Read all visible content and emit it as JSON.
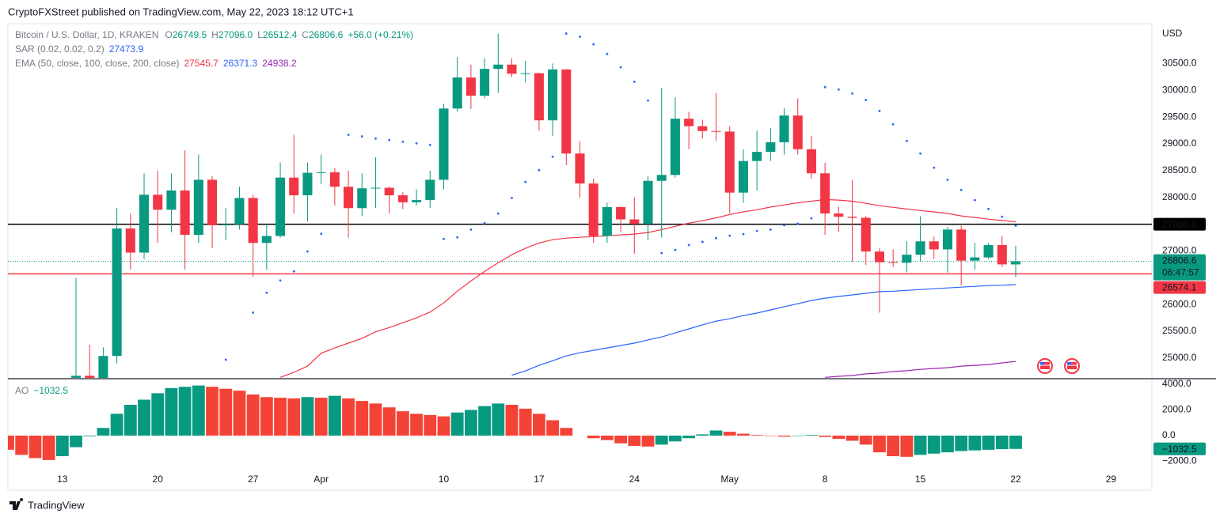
{
  "header": "CryptoFXStreet published on TradingView.com, May 22, 2023 18:12 UTC+1",
  "footer": "TradingView",
  "chart_data": [
    {
      "type": "candlestick",
      "symbol": "Bitcoin / U.S. Dollar, 1D, KRAKEN",
      "ohlc_labels": [
        {
          "key": "O",
          "label": "26749.5"
        },
        {
          "key": "H",
          "label": "27096.0"
        },
        {
          "key": "L",
          "label": "26512.4"
        },
        {
          "key": "C",
          "label": "26806.6"
        }
      ],
      "change": "+56.0 (+0.21%)",
      "currency": "USD",
      "up_color": "#089981",
      "down_color": "#f23645",
      "x": [
        "2023-03-14",
        "2023-03-15",
        "2023-03-16",
        "2023-03-17",
        "2023-03-18",
        "2023-03-19",
        "2023-03-20",
        "2023-03-21",
        "2023-03-22",
        "2023-03-23",
        "2023-03-24",
        "2023-03-25",
        "2023-03-26",
        "2023-03-27",
        "2023-03-28",
        "2023-03-29",
        "2023-03-30",
        "2023-03-31",
        "2023-04-01",
        "2023-04-02",
        "2023-04-03",
        "2023-04-04",
        "2023-04-05",
        "2023-04-06",
        "2023-04-07",
        "2023-04-08",
        "2023-04-09",
        "2023-04-10",
        "2023-04-11",
        "2023-04-12",
        "2023-04-13",
        "2023-04-14",
        "2023-04-15",
        "2023-04-16",
        "2023-04-17",
        "2023-04-18",
        "2023-04-19",
        "2023-04-20",
        "2023-04-21",
        "2023-04-22",
        "2023-04-23",
        "2023-04-24",
        "2023-04-25",
        "2023-04-26",
        "2023-04-27",
        "2023-04-28",
        "2023-04-29",
        "2023-04-30",
        "2023-05-01",
        "2023-05-02",
        "2023-05-03",
        "2023-05-04",
        "2023-05-05",
        "2023-05-06",
        "2023-05-07",
        "2023-05-08",
        "2023-05-09",
        "2023-05-10",
        "2023-05-11",
        "2023-05-12",
        "2023-05-13",
        "2023-05-14",
        "2023-05-15",
        "2023-05-16",
        "2023-05-17",
        "2023-05-18",
        "2023-05-19",
        "2023-05-20",
        "2023-05-21",
        "2023-05-22"
      ],
      "open": [
        24120,
        24670,
        24290,
        25040,
        27420,
        26970,
        28050,
        27770,
        28130,
        27300,
        28330,
        27480,
        27500,
        27990,
        27150,
        27280,
        28370,
        28040,
        28460,
        28470,
        28200,
        27800,
        28170,
        28180,
        28040,
        27910,
        27950,
        28330,
        29660,
        30240,
        29900,
        30400,
        30480,
        30310,
        30320,
        29440,
        30390,
        28820,
        28260,
        27280,
        27820,
        27590,
        27510,
        28310,
        28420,
        29470,
        29330,
        29240,
        29230,
        28090,
        28680,
        28850,
        29030,
        29530,
        28900,
        28450,
        27700,
        27640,
        27620,
        26990,
        26790,
        26780,
        26930,
        27180,
        27030,
        27400,
        26820,
        26880,
        27110,
        26749.5
      ],
      "high": [
        26500,
        25250,
        25200,
        27800,
        27700,
        28450,
        28500,
        28450,
        28880,
        28800,
        28400,
        27800,
        28200,
        28050,
        27500,
        28650,
        29170,
        28650,
        28800,
        28550,
        28500,
        28450,
        28750,
        28200,
        28100,
        28150,
        28500,
        29750,
        30620,
        30480,
        30600,
        31060,
        30600,
        30550,
        30330,
        30500,
        30400,
        29050,
        28350,
        27900,
        27830,
        28000,
        28400,
        30050,
        29870,
        29600,
        29450,
        29950,
        29330,
        28900,
        29250,
        29300,
        29670,
        29850,
        29150,
        28650,
        27830,
        28330,
        27650,
        27050,
        27030,
        27180,
        27650,
        27270,
        27450,
        27470,
        27150,
        27150,
        27280,
        27096.0
      ],
      "low": [
        24100,
        23900,
        24200,
        24900,
        26650,
        26850,
        27150,
        27350,
        26650,
        27150,
        27050,
        27200,
        27400,
        26520,
        26650,
        27250,
        27700,
        27550,
        28250,
        27850,
        27250,
        27650,
        27800,
        27700,
        27780,
        27850,
        27800,
        28150,
        29600,
        29650,
        29850,
        29950,
        30250,
        30150,
        29250,
        29150,
        28600,
        28000,
        27150,
        27150,
        27350,
        26950,
        27200,
        27250,
        28370,
        28900,
        29100,
        29050,
        27700,
        27900,
        28130,
        28680,
        28800,
        28800,
        28350,
        27300,
        27350,
        26800,
        26740,
        25850,
        26700,
        26600,
        26800,
        26850,
        26600,
        26360,
        26650,
        26850,
        26700,
        26512.4
      ],
      "close": [
        24670,
        24290,
        25040,
        27420,
        26970,
        28050,
        27770,
        28130,
        27300,
        28330,
        27480,
        27500,
        27990,
        27150,
        27280,
        28370,
        28040,
        28460,
        28470,
        28200,
        27800,
        28170,
        28180,
        28040,
        27910,
        27950,
        28330,
        29660,
        30240,
        29900,
        30400,
        30480,
        30310,
        30320,
        29440,
        30390,
        28820,
        28260,
        27280,
        27820,
        27590,
        27510,
        28310,
        28420,
        29470,
        29330,
        29240,
        29230,
        28090,
        28680,
        28850,
        29030,
        29530,
        28900,
        28450,
        27700,
        27640,
        27620,
        26990,
        26790,
        26780,
        26930,
        27180,
        27030,
        27400,
        26820,
        26880,
        27110,
        26750,
        26806.6
      ],
      "indicators": [
        {
          "name": "SAR (0.02, 0.02, 0.2)",
          "series": [
            {
              "style": "dots",
              "color": "#2962ff",
              "values": [
                null,
                null,
                null,
                null,
                null,
                null,
                null,
                null,
                null,
                null,
                null,
                24970,
                null,
                25850,
                26220,
                26450,
                26620,
                26990,
                27320,
                null,
                29170,
                29140,
                29100,
                29070,
                29040,
                29010,
                28980,
                27225,
                27255,
                27400,
                27520,
                27700,
                27990,
                28290,
                28510,
                28760,
                31060,
                31000,
                30860,
                30680,
                30430,
                30160,
                29810,
                26960,
                27020,
                27110,
                27170,
                27240,
                27285,
                27315,
                27375,
                27400,
                27480,
                27510,
                27610,
                30060,
                30015,
                29940,
                29820,
                29615,
                29365,
                29055,
                28820,
                28555,
                28330,
                28140,
                27950,
                27785,
                27640,
                27473.9
              ]
            }
          ]
        },
        {
          "name": "EMA (50, close, 100, close, 200, close)",
          "series": [
            {
              "style": "line",
              "color": "#f23645",
              "values": [
                null,
                null,
                null,
                null,
                null,
                null,
                null,
                null,
                null,
                null,
                null,
                null,
                null,
                null,
                null,
                24640,
                24733,
                24850,
                25090,
                25190,
                25280,
                25370,
                25490,
                25570,
                25660,
                25750,
                25860,
                26030,
                26250,
                26440,
                26620,
                26780,
                26930,
                27050,
                27150,
                27210,
                27240,
                27255,
                27270,
                27285,
                27300,
                27315,
                27345,
                27400,
                27460,
                27520,
                27565,
                27620,
                27680,
                27730,
                27770,
                27820,
                27860,
                27900,
                27930,
                27960,
                27950,
                27930,
                27890,
                27845,
                27815,
                27785,
                27755,
                27730,
                27700,
                27655,
                27625,
                27595,
                27570,
                27545.7
              ]
            },
            {
              "style": "line",
              "color": "#2962ff",
              "values": [
                null,
                null,
                null,
                null,
                null,
                null,
                null,
                null,
                null,
                null,
                null,
                null,
                null,
                null,
                null,
                null,
                null,
                null,
                null,
                null,
                null,
                null,
                null,
                null,
                null,
                null,
                null,
                null,
                null,
                null,
                null,
                null,
                24680,
                24760,
                24865,
                24950,
                25040,
                25100,
                25145,
                25190,
                25235,
                25280,
                25340,
                25395,
                25470,
                25545,
                25620,
                25690,
                25735,
                25795,
                25840,
                25900,
                25960,
                26015,
                26075,
                26120,
                26150,
                26180,
                26210,
                26240,
                26250,
                26265,
                26280,
                26295,
                26310,
                26325,
                26340,
                26355,
                26360,
                26371.3
              ]
            },
            {
              "style": "line",
              "color": "#9c27b0",
              "values": [
                null,
                null,
                null,
                null,
                null,
                null,
                null,
                null,
                null,
                null,
                null,
                null,
                null,
                null,
                null,
                null,
                null,
                null,
                null,
                null,
                null,
                null,
                null,
                null,
                null,
                null,
                null,
                null,
                null,
                null,
                null,
                null,
                null,
                null,
                null,
                null,
                null,
                null,
                null,
                null,
                null,
                null,
                null,
                null,
                null,
                null,
                null,
                null,
                null,
                null,
                null,
                null,
                null,
                null,
                null,
                24640,
                24660,
                24675,
                24705,
                24720,
                24750,
                24765,
                24790,
                24805,
                24820,
                24850,
                24865,
                24880,
                24910,
                24938.2
              ]
            }
          ]
        }
      ],
      "hlines": [
        {
          "value": 27500,
          "label": "27500.0",
          "color": "#000000"
        },
        {
          "value": 26574.1,
          "label": "26574.1",
          "color": "#f23645"
        }
      ],
      "last_price": {
        "value": 26806.6,
        "label": "26806.6",
        "countdown": "06:47:57",
        "color": "#089981"
      },
      "xlim": [
        "2023-03-09",
        "2023-06-01"
      ],
      "ylim": [
        24630,
        31170
      ],
      "yticks": [
        {
          "value": 25000,
          "label": "25000.0"
        },
        {
          "value": 25500,
          "label": "25500.0"
        },
        {
          "value": 26000,
          "label": "26000.0"
        },
        {
          "value": 26500,
          "label": "26500.0"
        },
        {
          "value": 27000,
          "label": "27000.0"
        },
        {
          "value": 27500,
          "label": "27500.0"
        },
        {
          "value": 28000,
          "label": "28000.0"
        },
        {
          "value": 28500,
          "label": "28500.0"
        },
        {
          "value": 29000,
          "label": "29000.0"
        },
        {
          "value": 29500,
          "label": "29500.0"
        },
        {
          "value": 30000,
          "label": "30000.0"
        },
        {
          "value": 30500,
          "label": "30500.0"
        }
      ]
    },
    {
      "type": "bar",
      "name": "AO",
      "up_color": "#089981",
      "down_color": "#f44336",
      "x": [
        "2023-03-09",
        "2023-03-10",
        "2023-03-11",
        "2023-03-12",
        "2023-03-13",
        "2023-03-14",
        "2023-03-15",
        "2023-03-16",
        "2023-03-17",
        "2023-03-18",
        "2023-03-19",
        "2023-03-20",
        "2023-03-21",
        "2023-03-22",
        "2023-03-23",
        "2023-03-24",
        "2023-03-25",
        "2023-03-26",
        "2023-03-27",
        "2023-03-28",
        "2023-03-29",
        "2023-03-30",
        "2023-03-31",
        "2023-04-01",
        "2023-04-02",
        "2023-04-03",
        "2023-04-04",
        "2023-04-05",
        "2023-04-06",
        "2023-04-07",
        "2023-04-08",
        "2023-04-09",
        "2023-04-10",
        "2023-04-11",
        "2023-04-12",
        "2023-04-13",
        "2023-04-14",
        "2023-04-15",
        "2023-04-16",
        "2023-04-17",
        "2023-04-18",
        "2023-04-19",
        "2023-04-20",
        "2023-04-21",
        "2023-04-22",
        "2023-04-23",
        "2023-04-24",
        "2023-04-25",
        "2023-04-26",
        "2023-04-27",
        "2023-04-28",
        "2023-04-29",
        "2023-04-30",
        "2023-05-01",
        "2023-05-02",
        "2023-05-03",
        "2023-05-04",
        "2023-05-05",
        "2023-05-06",
        "2023-05-07",
        "2023-05-08",
        "2023-05-09",
        "2023-05-10",
        "2023-05-11",
        "2023-05-12",
        "2023-05-13",
        "2023-05-14",
        "2023-05-15",
        "2023-05-16",
        "2023-05-17",
        "2023-05-18",
        "2023-05-19",
        "2023-05-20",
        "2023-05-21",
        "2023-05-22"
      ],
      "values": [
        -1100,
        -1500,
        -1750,
        -1900,
        -1600,
        -900,
        -50,
        600,
        1700,
        2400,
        2800,
        3300,
        3700,
        3800,
        3900,
        3800,
        3650,
        3500,
        3200,
        3000,
        2950,
        2900,
        3000,
        2950,
        3100,
        2900,
        2700,
        2500,
        2200,
        1900,
        1700,
        1600,
        1500,
        1800,
        2000,
        2300,
        2500,
        2400,
        2100,
        1700,
        1200,
        600,
        0,
        -200,
        -350,
        -600,
        -800,
        -850,
        -700,
        -450,
        -200,
        100,
        400,
        300,
        150,
        50,
        -30,
        -80,
        -30,
        50,
        -100,
        -250,
        -400,
        -700,
        -1300,
        -1600,
        -1650,
        -1500,
        -1400,
        -1300,
        -1200,
        -1150,
        -1100,
        -1050,
        -1032.5
      ],
      "last_label": "−1032.5",
      "xlim": [
        "2023-03-09",
        "2023-06-01"
      ],
      "ylim": [
        -3015,
        4370
      ],
      "yticks": [
        {
          "value": 4000,
          "label": "4000.0"
        },
        {
          "value": 2000,
          "label": "2000.0"
        },
        {
          "value": 0,
          "label": "0.0"
        },
        {
          "value": -2000,
          "label": "−2000.0"
        }
      ],
      "xticks": [
        {
          "value": "2023-03-13",
          "label": "13"
        },
        {
          "value": "2023-03-20",
          "label": "20"
        },
        {
          "value": "2023-03-27",
          "label": "27"
        },
        {
          "value": "2023-04-01",
          "label": "Apr"
        },
        {
          "value": "2023-04-10",
          "label": "10"
        },
        {
          "value": "2023-04-17",
          "label": "17"
        },
        {
          "value": "2023-04-24",
          "label": "24"
        },
        {
          "value": "2023-05-01",
          "label": "May"
        },
        {
          "value": "2023-05-08",
          "label": "8"
        },
        {
          "value": "2023-05-15",
          "label": "15"
        },
        {
          "value": "2023-05-22",
          "label": "22"
        },
        {
          "value": "2023-05-29",
          "label": "29"
        }
      ]
    }
  ]
}
